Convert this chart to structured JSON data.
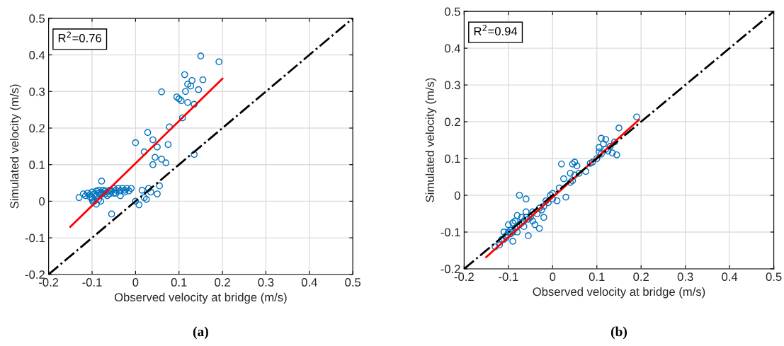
{
  "chart_data": [
    {
      "type": "scatter",
      "xlabel": "Observed velocity at bridge (m/s)",
      "ylabel": "Simulated velocity (m/s)",
      "annotations": [
        "R$^{2}$=0.76",
        "(a)"
      ],
      "xlim": [
        -0.2,
        0.5
      ],
      "ylim": [
        -0.2,
        0.5
      ],
      "xticks": [
        -0.2,
        -0.1,
        0,
        0.1,
        0.2,
        0.3,
        0.4,
        0.5
      ],
      "yticks": [
        -0.2,
        -0.1,
        0,
        0.1,
        0.2,
        0.3,
        0.4,
        0.5
      ],
      "grid": true,
      "series": [
        {
          "marker": "circle",
          "color": "#0072bd",
          "x": [
            0.15,
            0.192,
            0.113,
            0.12,
            0.13,
            0.155,
            0.127,
            0.145,
            0.115,
            0.06,
            0.095,
            0.1,
            0.105,
            0.12,
            0.135,
            0.108,
            0.078,
            0.028,
            0.04,
            0.05,
            0.02,
            0.075,
            0.0,
            0.045,
            0.06,
            0.04,
            0.07,
            0.135,
            0.055,
            0.03,
            0.015,
            0.05,
            0.02,
            0.035,
            0.0,
            0.008,
            0.025,
            -0.13,
            -0.12,
            -0.115,
            -0.11,
            -0.105,
            -0.1,
            -0.1,
            -0.095,
            -0.09,
            -0.09,
            -0.085,
            -0.085,
            -0.08,
            -0.08,
            -0.075,
            -0.075,
            -0.07,
            -0.07,
            -0.065,
            -0.06,
            -0.06,
            -0.055,
            -0.05,
            -0.05,
            -0.045,
            -0.04,
            -0.035,
            -0.03,
            -0.025,
            -0.02,
            -0.015,
            -0.01,
            -0.1,
            -0.095,
            -0.09,
            -0.085,
            -0.078,
            -0.08,
            -0.055,
            -0.065,
            -0.045,
            -0.035,
            -0.025,
            -0.105,
            -0.098
          ],
          "values": [
            0.397,
            0.381,
            0.346,
            0.32,
            0.33,
            0.332,
            0.315,
            0.305,
            0.3,
            0.299,
            0.285,
            0.28,
            0.275,
            0.27,
            0.265,
            0.228,
            0.203,
            0.188,
            0.168,
            0.148,
            0.135,
            0.155,
            0.16,
            0.12,
            0.115,
            0.1,
            0.105,
            0.128,
            0.042,
            0.035,
            0.03,
            0.02,
            0.01,
            0.025,
            0.0,
            -0.01,
            0.005,
            0.01,
            0.02,
            0.015,
            0.022,
            0.018,
            0.025,
            0.01,
            0.02,
            0.028,
            0.015,
            0.022,
            0.03,
            0.025,
            0.018,
            0.03,
            0.022,
            0.028,
            0.02,
            0.025,
            0.03,
            0.02,
            0.028,
            0.035,
            0.022,
            0.03,
            0.035,
            0.028,
            0.035,
            0.03,
            0.035,
            0.028,
            0.035,
            0.005,
            0.0,
            -0.008,
            0.005,
            0.055,
            0.0,
            -0.035,
            0.015,
            0.022,
            0.015,
            0.025,
            0.012,
            -0.002
          ]
        },
        {
          "type": "line",
          "color": "#ff0000",
          "x": [
            -0.15,
            0.2
          ],
          "values": [
            -0.07,
            0.335
          ]
        },
        {
          "type": "line",
          "color": "#000000",
          "line_style": "dashdot",
          "x": [
            -0.2,
            0.5
          ],
          "values": [
            -0.2,
            0.5
          ]
        }
      ]
    },
    {
      "type": "scatter",
      "xlabel": "Observed velocity at bridge (m/s)",
      "ylabel": "Simulated velocity (m/s)",
      "annotations": [
        "R$^{2}$=0.94",
        "(b)"
      ],
      "xlim": [
        -0.2,
        0.5
      ],
      "ylim": [
        -0.2,
        0.5
      ],
      "xticks": [
        -0.2,
        -0.1,
        0,
        0.1,
        0.2,
        0.3,
        0.4,
        0.5
      ],
      "yticks": [
        -0.2,
        -0.1,
        0,
        0.1,
        0.2,
        0.3,
        0.4,
        0.5
      ],
      "grid": true,
      "series": [
        {
          "marker": "circle",
          "color": "#0072bd",
          "x": [
            0.19,
            0.15,
            0.11,
            0.12,
            0.115,
            0.13,
            0.14,
            0.105,
            0.125,
            0.135,
            0.145,
            0.105,
            0.1,
            0.09,
            0.11,
            0.12,
            0.085,
            0.075,
            0.05,
            0.045,
            0.055,
            0.04,
            0.02,
            0.05,
            0.045,
            0.04,
            0.025,
            0.015,
            0.0,
            -0.005,
            0.0,
            0.01,
            -0.01,
            -0.015,
            -0.02,
            -0.03,
            -0.035,
            -0.025,
            -0.045,
            -0.05,
            -0.055,
            -0.06,
            -0.065,
            -0.07,
            -0.075,
            -0.08,
            -0.085,
            -0.09,
            -0.095,
            -0.1,
            -0.105,
            -0.11,
            -0.115,
            -0.12,
            -0.075,
            -0.06,
            -0.08,
            -0.07,
            -0.09,
            -0.1,
            -0.085,
            -0.065,
            -0.095,
            -0.105,
            -0.11,
            -0.13,
            -0.055,
            -0.04,
            -0.045,
            -0.02,
            -0.03,
            -0.06,
            -0.08,
            -0.09,
            0.03,
            0.06
          ],
          "values": [
            0.213,
            0.183,
            0.155,
            0.152,
            0.14,
            0.133,
            0.145,
            0.13,
            0.12,
            0.115,
            0.11,
            0.118,
            0.1,
            0.09,
            0.112,
            0.125,
            0.087,
            0.065,
            0.09,
            0.085,
            0.08,
            0.06,
            0.085,
            0.055,
            0.04,
            0.035,
            0.045,
            0.02,
            0.005,
            0.0,
            -0.01,
            -0.015,
            -0.02,
            -0.015,
            -0.03,
            -0.035,
            -0.05,
            -0.04,
            -0.045,
            -0.06,
            -0.065,
            -0.06,
            -0.07,
            -0.075,
            -0.08,
            -0.085,
            -0.09,
            -0.1,
            -0.095,
            -0.1,
            -0.11,
            -0.12,
            -0.12,
            -0.135,
            0.0,
            -0.01,
            -0.055,
            -0.06,
            -0.075,
            -0.08,
            -0.07,
            -0.085,
            -0.105,
            -0.115,
            -0.1,
            -0.14,
            -0.11,
            -0.08,
            -0.07,
            -0.06,
            -0.09,
            -0.045,
            -0.1,
            -0.125,
            -0.005,
            0.06
          ]
        },
        {
          "type": "line",
          "color": "#ff0000",
          "x": [
            -0.15,
            0.195
          ],
          "values": [
            -0.168,
            0.205
          ]
        },
        {
          "type": "line",
          "color": "#000000",
          "line_style": "dashdot",
          "x": [
            -0.2,
            0.5
          ],
          "values": [
            -0.2,
            0.5
          ]
        }
      ]
    }
  ]
}
